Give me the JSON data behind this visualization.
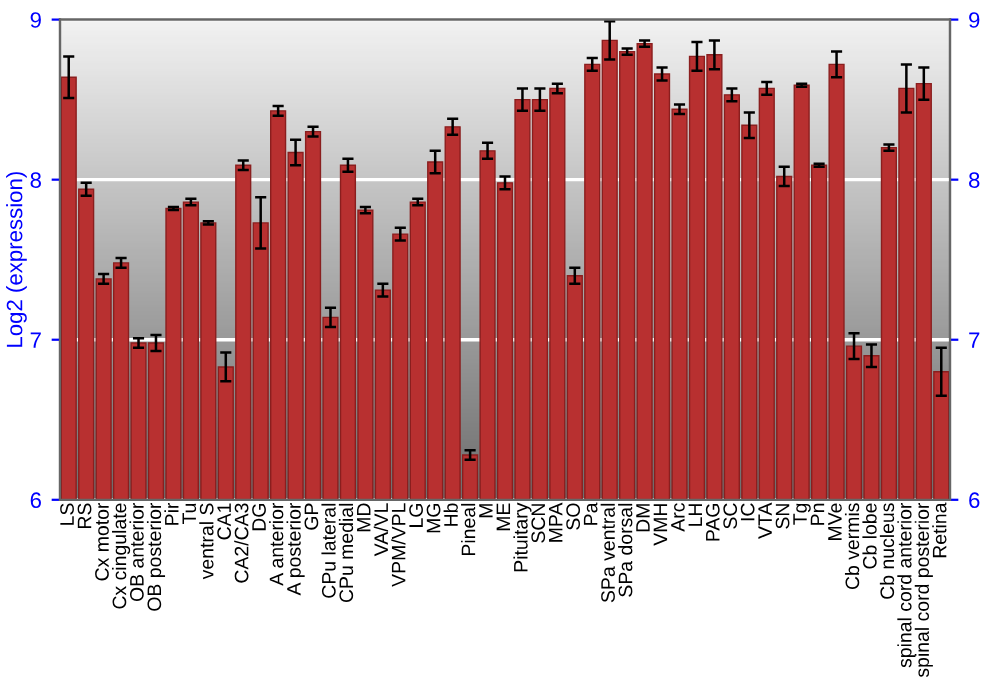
{
  "chart_data": {
    "type": "bar",
    "ylabel": "Log2 (expression)",
    "categories": [
      "LS",
      "RS",
      "Cx motor",
      "Cx cingulate",
      "OB anterior",
      "OB posterior",
      "Pir",
      "Tu",
      "ventral S",
      "CA1",
      "CA2/CA3",
      "DG",
      "A anterior",
      "A posterior",
      "GP",
      "CPu lateral",
      "CPu medial",
      "MD",
      "VA/VL",
      "VPM/VPL",
      "LG",
      "MG",
      "Hb",
      "Pineal",
      "M",
      "ME",
      "Pituitary",
      "SCN",
      "MPA",
      "SO",
      "Pa",
      "SPa ventral",
      "SPa dorsal",
      "DM",
      "VMH",
      "Arc",
      "LH",
      "PAG",
      "SC",
      "IC",
      "VTA",
      "SN",
      "Tg",
      "Pn",
      "MVe",
      "Cb vermis",
      "Cb lobe",
      "Cb nucleus",
      "spinal cord anterior",
      "spinal cord posterior",
      "Retina"
    ],
    "values": [
      8.64,
      7.94,
      7.38,
      7.48,
      6.98,
      6.98,
      7.82,
      7.86,
      7.73,
      6.83,
      8.09,
      7.73,
      8.43,
      8.17,
      8.3,
      7.14,
      8.09,
      7.81,
      7.31,
      7.66,
      7.86,
      8.11,
      8.33,
      6.28,
      8.18,
      7.98,
      8.5,
      8.5,
      8.57,
      7.4,
      8.72,
      8.87,
      8.8,
      8.85,
      8.66,
      8.44,
      8.77,
      8.78,
      8.53,
      8.34,
      8.57,
      8.02,
      8.59,
      8.09,
      8.72,
      6.96,
      6.9,
      8.2,
      8.57,
      8.6,
      6.8
    ],
    "errors": [
      0.13,
      0.04,
      0.03,
      0.03,
      0.03,
      0.05,
      0.01,
      0.02,
      0.01,
      0.09,
      0.03,
      0.16,
      0.03,
      0.08,
      0.03,
      0.06,
      0.04,
      0.02,
      0.04,
      0.04,
      0.02,
      0.07,
      0.05,
      0.03,
      0.05,
      0.04,
      0.07,
      0.07,
      0.03,
      0.05,
      0.04,
      0.12,
      0.02,
      0.02,
      0.04,
      0.03,
      0.09,
      0.09,
      0.04,
      0.08,
      0.04,
      0.06,
      0.01,
      0.01,
      0.08,
      0.08,
      0.07,
      0.02,
      0.15,
      0.1,
      0.15
    ],
    "color": "#b83030",
    "ylim": [
      6,
      9
    ],
    "yticks": [
      6,
      7,
      8,
      9
    ],
    "y2lim": [
      6,
      9
    ],
    "y2ticks": [
      6,
      7,
      8,
      9
    ],
    "grid": "y",
    "legend": false
  }
}
